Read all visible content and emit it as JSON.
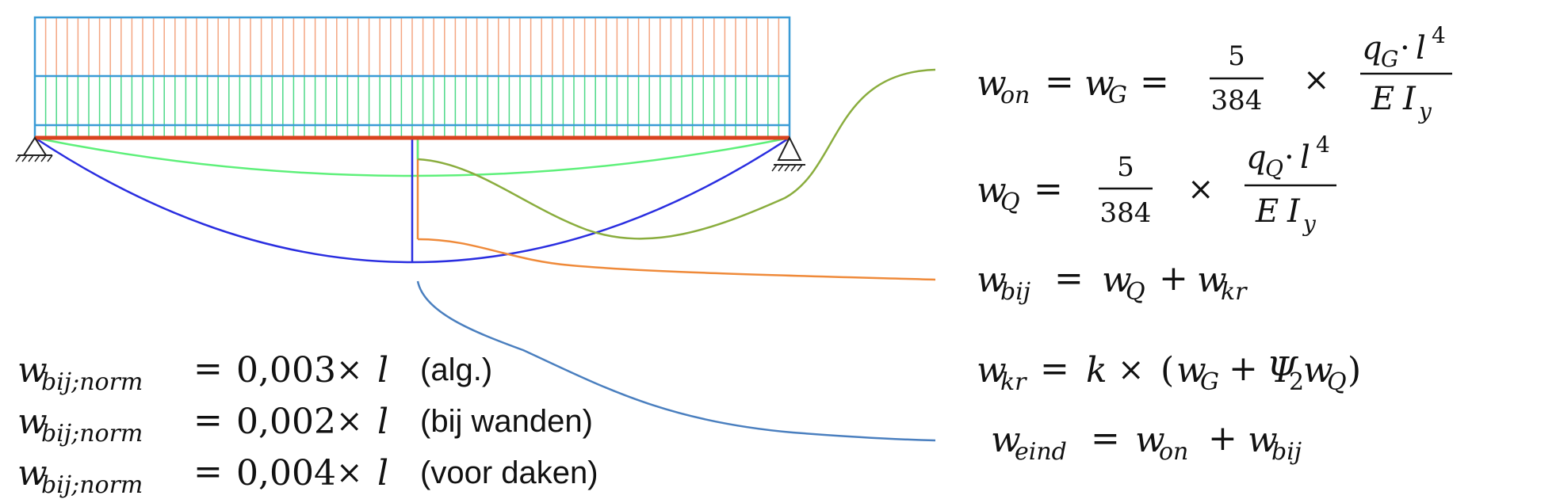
{
  "colors": {
    "frame": "#3a9bd6",
    "hatch_top": "#f4a582",
    "hatch_mid": "#4dd987",
    "beam": "#d9431e",
    "deflection_total": "#2a2ee0",
    "deflection_permanent": "#5ef07a",
    "callout_green": "#8aad3e",
    "callout_orange": "#ef8a3a",
    "callout_blue": "#4a7fbf",
    "text": "#111111"
  },
  "formulas": {
    "w_on": {
      "lhs": "w",
      "lhs_sub": "on",
      "eq1": "=",
      "mid": "w",
      "mid_sub": "G",
      "eq2": "=",
      "frac_num": "5",
      "frac_den": "384",
      "times": "×",
      "load_q": "q",
      "load_sub": "G",
      "load_dot": "·",
      "load_l": "l",
      "load_exp": "4",
      "stiff_E": "E",
      "stiff_I": "I",
      "stiff_sub": "y"
    },
    "w_q": {
      "lhs": "w",
      "lhs_sub": "Q",
      "eq": "=",
      "frac_num": "5",
      "frac_den": "384",
      "times": "×",
      "load_q": "q",
      "load_sub": "Q",
      "load_dot": "·",
      "load_l": "l",
      "load_exp": "4",
      "stiff_E": "E",
      "stiff_I": "I",
      "stiff_sub": "y"
    },
    "w_bij": {
      "lhs": "w",
      "lhs_sub": "bij",
      "eq": "=",
      "t1": "w",
      "t1_sub": "Q",
      "plus": "+",
      "t2": "w",
      "t2_sub": "kr"
    },
    "w_kr": {
      "lhs": "w",
      "lhs_sub": "kr",
      "eq": "=",
      "k": "k",
      "times": "×",
      "open": "(",
      "t1": "w",
      "t1_sub": "G",
      "plus": "+",
      "psi": "Ψ",
      "psi_sub": "2",
      "t2": "w",
      "t2_sub": "Q",
      "close": ")"
    },
    "w_eind": {
      "lhs": "w",
      "lhs_sub": "eind",
      "eq": "=",
      "t1": "w",
      "t1_sub": "on",
      "plus": "+",
      "t2": "w",
      "t2_sub": "bij"
    }
  },
  "norms": [
    {
      "w": "w",
      "sub": "bij;norm",
      "eq": "=",
      "value": "0,003",
      "times": "×",
      "l": "l",
      "note": "(alg.)"
    },
    {
      "w": "w",
      "sub": "bij;norm",
      "eq": "=",
      "value": "0,002",
      "times": "×",
      "l": "l",
      "note": "(bij wanden)"
    },
    {
      "w": "w",
      "sub": "bij;norm",
      "eq": "=",
      "value": "0,004",
      "times": "×",
      "l": "l",
      "note": "(voor daken)"
    }
  ]
}
